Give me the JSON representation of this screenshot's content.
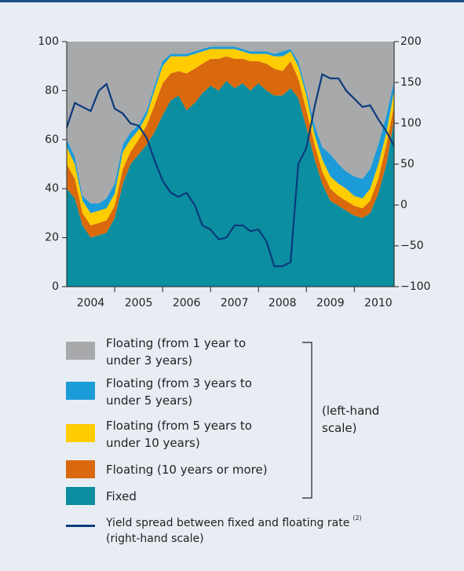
{
  "chart_data": {
    "type": "area",
    "x": [
      2004,
      2004.17,
      2004.33,
      2004.5,
      2004.67,
      2004.83,
      2005,
      2005.17,
      2005.33,
      2005.5,
      2005.67,
      2005.83,
      2006,
      2006.17,
      2006.33,
      2006.5,
      2006.67,
      2006.83,
      2007,
      2007.17,
      2007.33,
      2007.5,
      2007.67,
      2007.83,
      2008,
      2008.17,
      2008.33,
      2008.5,
      2008.67,
      2008.83,
      2009,
      2009.17,
      2009.33,
      2009.5,
      2009.67,
      2009.83,
      2010,
      2010.17,
      2010.33,
      2010.5,
      2010.67,
      2010.83
    ],
    "xlim": [
      2004,
      2010.83
    ],
    "xticks": [
      {
        "value": 2004.5,
        "label": "2004"
      },
      {
        "value": 2005.5,
        "label": "2005"
      },
      {
        "value": 2006.5,
        "label": "2006"
      },
      {
        "value": 2007.5,
        "label": "2007"
      },
      {
        "value": 2008.5,
        "label": "2008"
      },
      {
        "value": 2009.5,
        "label": "2009"
      },
      {
        "value": 2010.5,
        "label": "2010"
      }
    ],
    "ylim": [
      0,
      100
    ],
    "yticks": [
      0,
      20,
      40,
      60,
      80,
      100
    ],
    "y2lim": [
      -100,
      200
    ],
    "y2ticks": [
      {
        "value": -100,
        "label": "−100"
      },
      {
        "value": -50,
        "label": "−50"
      },
      0,
      50,
      100,
      150,
      200
    ],
    "series": [
      {
        "name": "Fixed",
        "color": "#0b8e9f",
        "values": [
          40,
          36,
          25,
          20,
          21,
          22,
          28,
          42,
          50,
          54,
          58,
          63,
          70,
          76,
          78,
          72,
          75,
          79,
          82,
          80,
          84,
          81,
          83,
          80,
          83,
          80,
          78,
          78,
          81,
          77,
          65,
          52,
          42,
          35,
          33,
          31,
          29,
          28,
          30,
          38,
          50,
          68
        ]
      },
      {
        "name": "Floating (10 years or more)",
        "color": "#d9690c",
        "values": [
          10,
          8,
          5,
          5,
          5,
          5,
          5,
          6,
          5,
          6,
          8,
          11,
          13,
          11,
          10,
          15,
          14,
          12,
          11,
          13,
          10,
          12,
          10,
          12,
          9,
          11,
          11,
          10,
          11,
          8,
          7,
          6,
          5,
          5,
          4,
          4,
          4,
          4,
          5,
          6,
          8,
          6
        ]
      },
      {
        "name": "Floating (from 5 years to under 10 years)",
        "color": "#ffcc00",
        "values": [
          7,
          6,
          5,
          5,
          5,
          5,
          5,
          7,
          5,
          4,
          4,
          6,
          7,
          7,
          6,
          7,
          6,
          5,
          4,
          4,
          3,
          4,
          3,
          3,
          3,
          4,
          5,
          6,
          4,
          5,
          6,
          4,
          5,
          5,
          5,
          5,
          4,
          4,
          5,
          6,
          5,
          6
        ]
      },
      {
        "name": "Floating (from 3 years to under 5 years)",
        "color": "#1b9bd7",
        "values": [
          3,
          3,
          2,
          4,
          3,
          4,
          4,
          3,
          3,
          2,
          2,
          2,
          2,
          1,
          1,
          1,
          1,
          1,
          1,
          1,
          1,
          1,
          1,
          1,
          1,
          1,
          1,
          2,
          1,
          2,
          2,
          4,
          5,
          9,
          8,
          7,
          8,
          8,
          8,
          8,
          7,
          4
        ]
      },
      {
        "name": "Floating (from 1 year to under 3 years)",
        "color": "#a8a9ab",
        "values": [
          40,
          47,
          63,
          66,
          66,
          64,
          58,
          42,
          37,
          34,
          28,
          18,
          8,
          5,
          5,
          5,
          4,
          3,
          2,
          2,
          2,
          2,
          3,
          4,
          4,
          4,
          5,
          4,
          3,
          8,
          20,
          34,
          43,
          46,
          50,
          53,
          55,
          56,
          52,
          42,
          30,
          16
        ]
      },
      {
        "name": "Yield spread between fixed and floating rate",
        "type": "line",
        "axis": "y2",
        "color": "#0b3a7c",
        "note_ref": "(2)",
        "scale_note": "(right-hand scale)",
        "values": [
          95,
          125,
          120,
          115,
          140,
          148,
          118,
          112,
          100,
          97,
          82,
          55,
          30,
          15,
          10,
          15,
          0,
          -25,
          -30,
          -42,
          -40,
          -25,
          -25,
          -32,
          -30,
          -45,
          -75,
          -75,
          -70,
          50,
          70,
          120,
          160,
          155,
          155,
          140,
          130,
          120,
          122,
          105,
          90,
          72
        ]
      }
    ],
    "left_scale_note": "(left-hand scale)"
  }
}
